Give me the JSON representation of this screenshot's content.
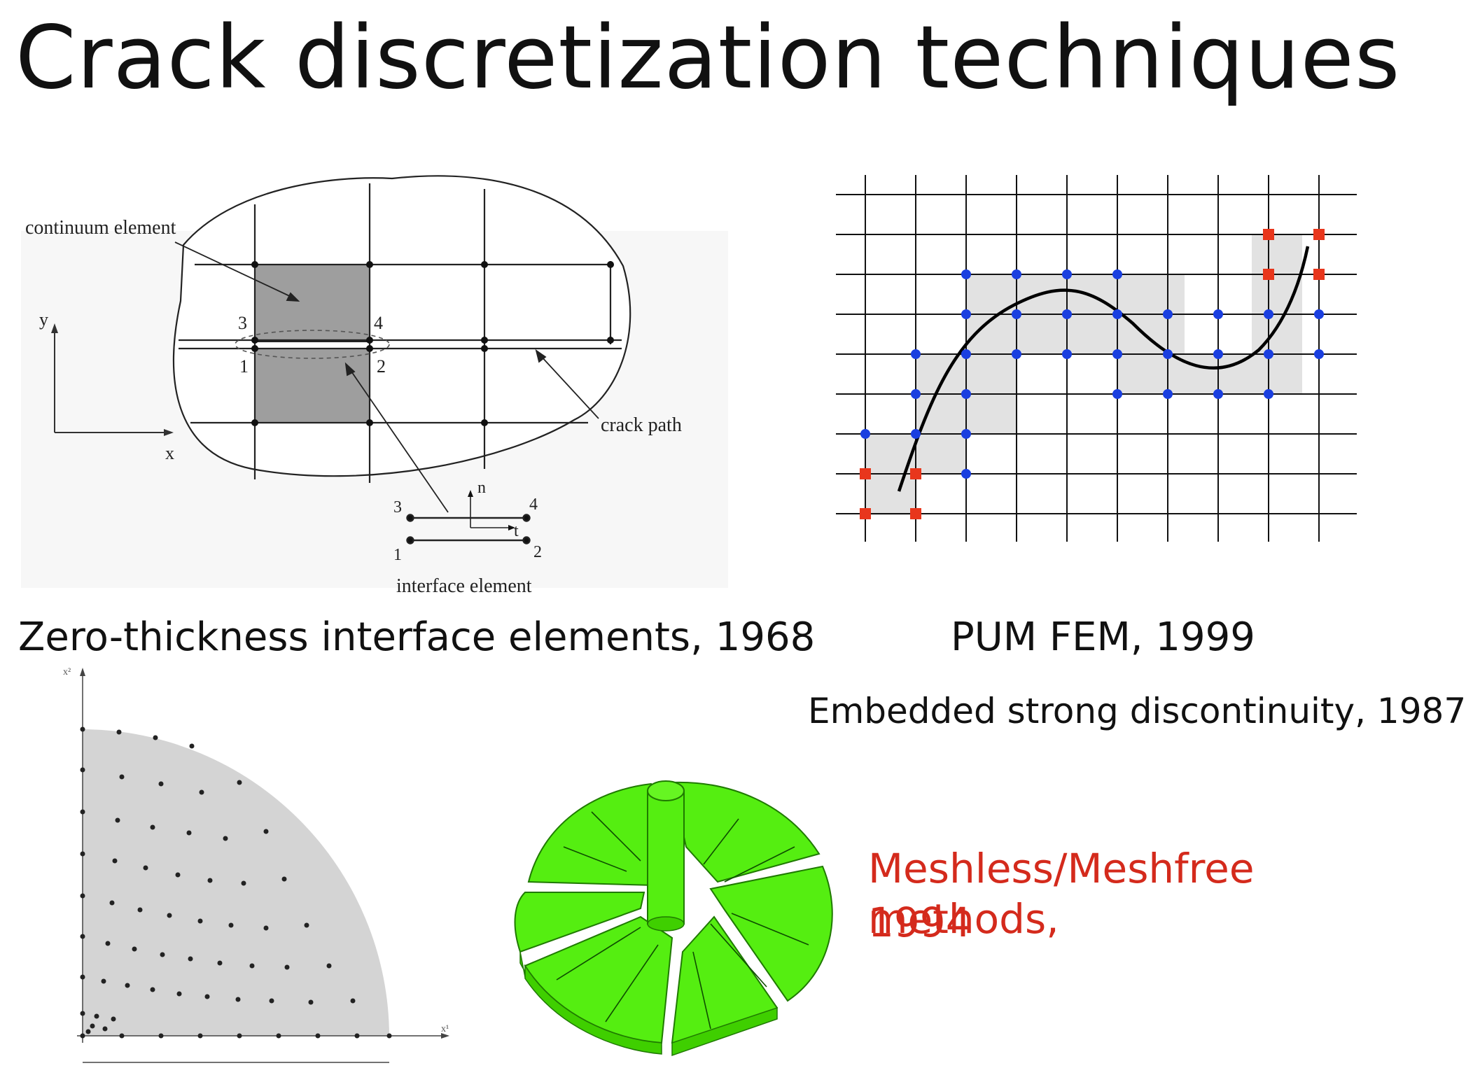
{
  "slide": {
    "title": "Crack discretization techniques",
    "captions": {
      "interface": "Zero-thickness interface elements, 1968",
      "pum": "PUM FEM, 1999",
      "embedded": "Embedded strong discontinuity, 1987",
      "meshless_line1": "Meshless/Meshfree methods,",
      "meshless_line2": "1994"
    },
    "accent_color": "#d42a1c"
  },
  "fig_interface": {
    "label_continuum": "continuum element",
    "label_crack_path": "crack path",
    "label_interface": "interface element",
    "axis_x": "x",
    "axis_y": "y",
    "local_n": "n",
    "local_t": "t",
    "nodes": [
      "1",
      "2",
      "3",
      "4"
    ]
  },
  "fig_pum": {
    "blue_node_color": "#1a3fe0",
    "enriched_node_color": "#e8361c",
    "band_color": "#e0e0e0"
  },
  "fig_meshless": {
    "axis_x": "x¹",
    "axis_y": "x²",
    "domain_color": "#d4d4d4"
  },
  "fig_3d": {
    "disc_color": "#55ee11"
  }
}
